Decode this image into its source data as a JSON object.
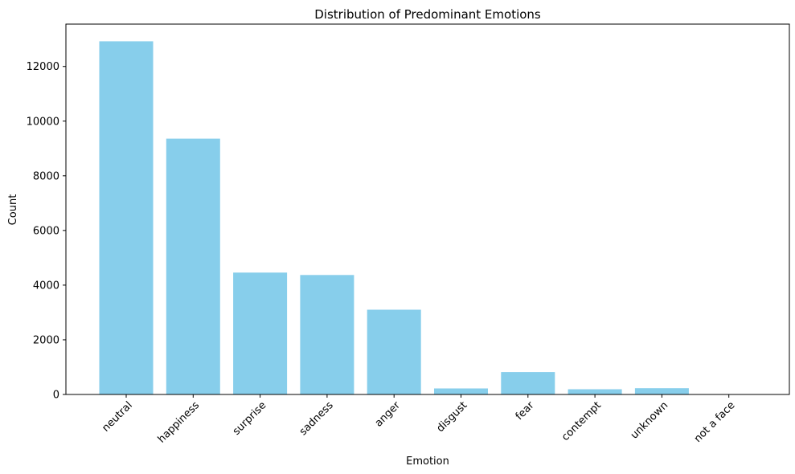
{
  "chart_data": {
    "type": "bar",
    "title": "Distribution of Predominant Emotions",
    "xlabel": "Emotion",
    "ylabel": "Count",
    "categories": [
      "neutral",
      "happiness",
      "surprise",
      "sadness",
      "anger",
      "disgust",
      "fear",
      "contempt",
      "unknown",
      "not a face"
    ],
    "values": [
      12920,
      9360,
      4460,
      4370,
      3100,
      220,
      820,
      190,
      230,
      5
    ],
    "ylim": [
      0,
      13550
    ],
    "yticks": [
      0,
      2000,
      4000,
      6000,
      8000,
      10000,
      12000
    ],
    "ytick_labels": [
      "0",
      "2000",
      "4000",
      "6000",
      "8000",
      "10000",
      "12000"
    ],
    "bar_color": "#87ceeb",
    "grid": false,
    "legend": "none"
  }
}
